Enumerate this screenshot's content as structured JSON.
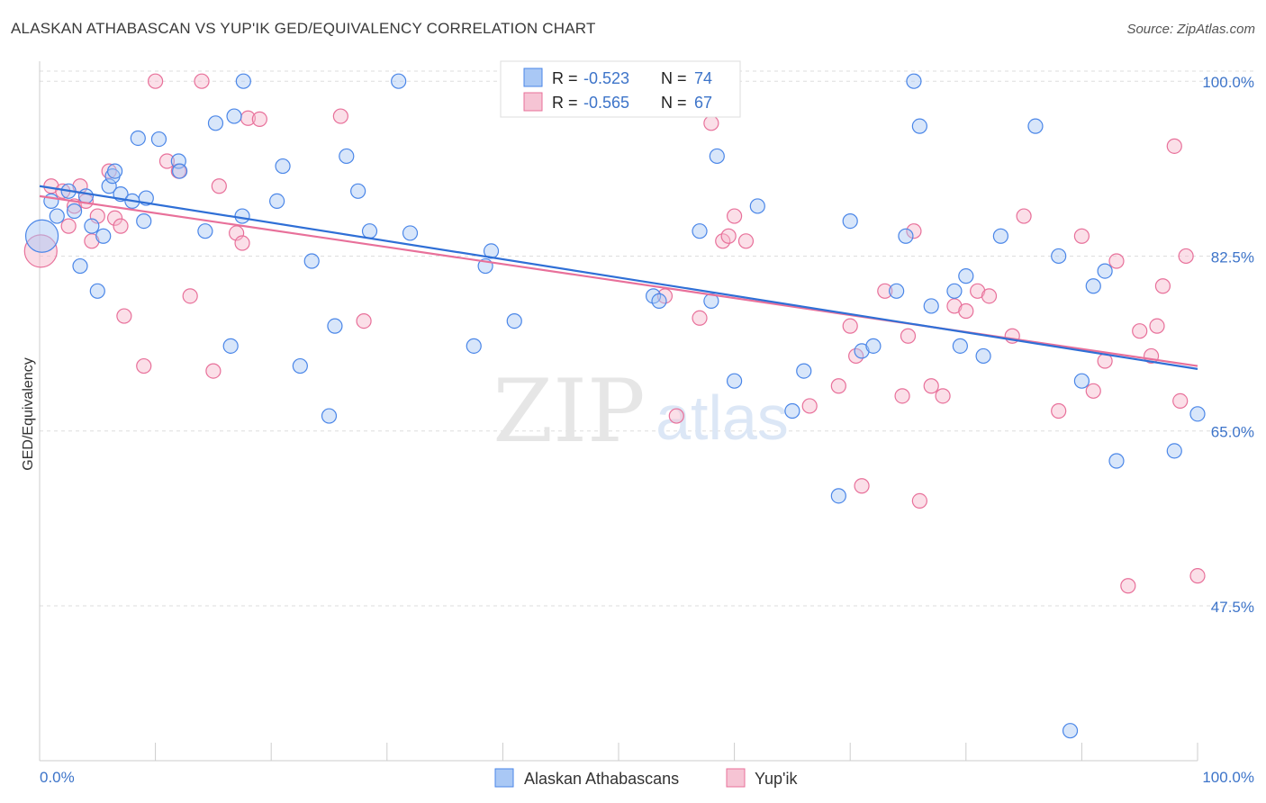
{
  "header": {
    "title": "ALASKAN ATHABASCAN VS YUP'IK GED/EQUIVALENCY CORRELATION CHART",
    "source": "Source: ZipAtlas.com"
  },
  "colors": {
    "blue": "#4a86e8",
    "blue_fill": "#a9c8f5",
    "pink": "#e8709a",
    "pink_fill": "#f6b8cc",
    "tick_label": "#3d74c9",
    "grid": "#dddddd"
  },
  "watermark": {
    "zip": "ZIP",
    "atlas": "atlas"
  },
  "chart_data": {
    "type": "scatter",
    "title": "ALASKAN ATHABASCAN VS YUP'IK GED/EQUIVALENCY CORRELATION CHART",
    "xlabel": "",
    "ylabel": "GED/Equivalency",
    "xlim": [
      0,
      100
    ],
    "ylim": [
      32,
      102
    ],
    "x_tick_labels": [
      "0.0%",
      "100.0%"
    ],
    "y_ticks": [
      100.0,
      82.5,
      65.0,
      47.5
    ],
    "y_tick_labels": [
      "100.0%",
      "82.5%",
      "65.0%",
      "47.5%"
    ],
    "grid": true,
    "legend": {
      "placement": "top-center",
      "entries": [
        {
          "r_label": "R = ",
          "r_value": "-0.523",
          "n_label": "N = ",
          "n_value": "74"
        },
        {
          "r_label": "R = ",
          "r_value": "-0.565",
          "n_label": "N = ",
          "n_value": 67
        }
      ]
    },
    "bottom_legend": [
      "Alaskan Athabascans",
      "Yup'ik"
    ],
    "series": [
      {
        "name": "Alaskan Athabascans",
        "trend": {
          "x0": 0,
          "y0": 89.5,
          "x1": 100,
          "y1": 71.2
        },
        "points": [
          [
            0.2,
            84.5
          ],
          [
            1,
            88
          ],
          [
            1.5,
            86.5
          ],
          [
            2.5,
            89
          ],
          [
            3,
            87
          ],
          [
            3.5,
            81.5
          ],
          [
            4,
            88.5
          ],
          [
            4.5,
            85.5
          ],
          [
            5,
            79
          ],
          [
            5.5,
            84.5
          ],
          [
            6,
            89.5
          ],
          [
            6.3,
            90.5
          ],
          [
            6.5,
            91
          ],
          [
            7,
            88.7
          ],
          [
            8,
            88
          ],
          [
            8.5,
            94.3
          ],
          [
            9,
            86
          ],
          [
            9.2,
            88.3
          ],
          [
            10.3,
            94.2
          ],
          [
            12,
            92
          ],
          [
            12.1,
            91
          ],
          [
            14.3,
            85
          ],
          [
            15.2,
            95.8
          ],
          [
            16.5,
            73.5
          ],
          [
            16.8,
            96.5
          ],
          [
            17.5,
            86.5
          ],
          [
            17.6,
            100
          ],
          [
            20.5,
            88
          ],
          [
            21,
            91.5
          ],
          [
            22.5,
            71.5
          ],
          [
            23.5,
            82
          ],
          [
            25,
            66.5
          ],
          [
            25.5,
            75.5
          ],
          [
            26.5,
            92.5
          ],
          [
            27.5,
            89
          ],
          [
            28.5,
            85
          ],
          [
            31,
            100
          ],
          [
            32,
            84.8
          ],
          [
            37.5,
            73.5
          ],
          [
            38.5,
            81.5
          ],
          [
            39,
            83
          ],
          [
            41,
            76
          ],
          [
            53,
            78.5
          ],
          [
            53.5,
            78
          ],
          [
            57,
            85
          ],
          [
            58,
            78
          ],
          [
            58.5,
            92.5
          ],
          [
            60,
            70
          ],
          [
            62,
            87.5
          ],
          [
            65,
            67
          ],
          [
            66,
            71
          ],
          [
            69,
            58.5
          ],
          [
            70,
            86
          ],
          [
            71,
            73
          ],
          [
            72,
            73.5
          ],
          [
            74,
            79
          ],
          [
            74.8,
            84.5
          ],
          [
            75.5,
            100
          ],
          [
            76,
            95.5
          ],
          [
            77,
            77.5
          ],
          [
            79,
            79
          ],
          [
            79.5,
            73.5
          ],
          [
            80,
            80.5
          ],
          [
            81.5,
            72.5
          ],
          [
            83,
            84.5
          ],
          [
            86,
            95.5
          ],
          [
            88,
            82.5
          ],
          [
            89,
            35
          ],
          [
            90,
            70
          ],
          [
            91,
            79.5
          ],
          [
            92,
            81
          ],
          [
            93,
            62
          ],
          [
            98,
            63
          ],
          [
            100,
            66.7
          ]
        ]
      },
      {
        "name": "Yup'ik",
        "trend": {
          "x0": 0,
          "y0": 88.5,
          "x1": 100,
          "y1": 71.5
        },
        "points": [
          [
            0.1,
            83
          ],
          [
            1,
            89.5
          ],
          [
            2,
            89
          ],
          [
            2.5,
            85.5
          ],
          [
            3,
            87.5
          ],
          [
            3.5,
            89.5
          ],
          [
            4,
            88
          ],
          [
            4.5,
            84
          ],
          [
            5,
            86.5
          ],
          [
            6,
            91
          ],
          [
            6.5,
            86.3
          ],
          [
            7,
            85.5
          ],
          [
            7.3,
            76.5
          ],
          [
            9,
            71.5
          ],
          [
            10,
            100
          ],
          [
            11,
            92
          ],
          [
            12,
            91
          ],
          [
            13,
            78.5
          ],
          [
            14,
            100
          ],
          [
            15,
            71
          ],
          [
            15.5,
            89.5
          ],
          [
            17,
            84.8
          ],
          [
            17.5,
            83.8
          ],
          [
            18,
            96.3
          ],
          [
            19,
            96.2
          ],
          [
            26,
            96.5
          ],
          [
            28,
            76
          ],
          [
            54,
            78.5
          ],
          [
            55,
            66.5
          ],
          [
            57,
            76.3
          ],
          [
            58,
            95.8
          ],
          [
            59,
            84
          ],
          [
            59.5,
            84.5
          ],
          [
            60,
            86.5
          ],
          [
            61,
            84
          ],
          [
            66.5,
            67.5
          ],
          [
            69,
            69.5
          ],
          [
            70,
            75.5
          ],
          [
            70.5,
            72.5
          ],
          [
            71,
            59.5
          ],
          [
            73,
            79
          ],
          [
            74.5,
            68.5
          ],
          [
            75,
            74.5
          ],
          [
            75.5,
            85
          ],
          [
            76,
            58
          ],
          [
            77,
            69.5
          ],
          [
            78,
            68.5
          ],
          [
            79,
            77.5
          ],
          [
            80,
            77
          ],
          [
            81,
            79
          ],
          [
            82,
            78.5
          ],
          [
            84,
            74.5
          ],
          [
            85,
            86.5
          ],
          [
            88,
            67
          ],
          [
            90,
            84.5
          ],
          [
            91,
            69
          ],
          [
            92,
            72
          ],
          [
            93,
            82
          ],
          [
            94,
            49.5
          ],
          [
            95,
            75
          ],
          [
            96,
            72.5
          ],
          [
            96.5,
            75.5
          ],
          [
            97,
            79.5
          ],
          [
            98,
            93.5
          ],
          [
            98.5,
            68
          ],
          [
            99,
            82.5
          ],
          [
            100,
            50.5
          ]
        ]
      }
    ]
  }
}
